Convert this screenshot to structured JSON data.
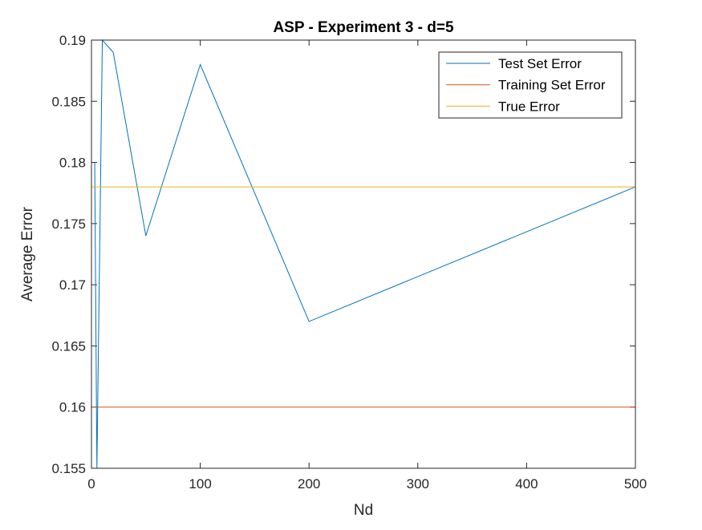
{
  "chart_data": {
    "type": "line",
    "title": "ASP - Experiment 3 - d=5",
    "xlabel": "Nd",
    "ylabel": "Average Error",
    "xlim": [
      0,
      500
    ],
    "ylim": [
      0.155,
      0.19
    ],
    "xticks": [
      0,
      100,
      200,
      300,
      400,
      500
    ],
    "xtick_labels": [
      "0",
      "100",
      "200",
      "300",
      "400",
      "500"
    ],
    "yticks": [
      0.155,
      0.16,
      0.165,
      0.17,
      0.175,
      0.18,
      0.185,
      0.19
    ],
    "ytick_labels": [
      "0.155",
      "0.16",
      "0.165",
      "0.17",
      "0.175",
      "0.18",
      "0.185",
      "0.19"
    ],
    "grid": false,
    "legend_position": "top-right",
    "series": [
      {
        "name": "Test Set Error",
        "color": "#0072BD",
        "x": [
          3,
          5,
          10,
          20,
          50,
          100,
          200,
          500
        ],
        "y": [
          0.18,
          0.155,
          0.19,
          0.189,
          0.174,
          0.188,
          0.167,
          0.178
        ]
      },
      {
        "name": "Training Set Error",
        "color": "#D95319",
        "x": [
          0,
          500
        ],
        "y": [
          0.16,
          0.16
        ]
      },
      {
        "name": "True Error",
        "color": "#EDB120",
        "x": [
          0,
          500
        ],
        "y": [
          0.178,
          0.178
        ]
      }
    ]
  }
}
